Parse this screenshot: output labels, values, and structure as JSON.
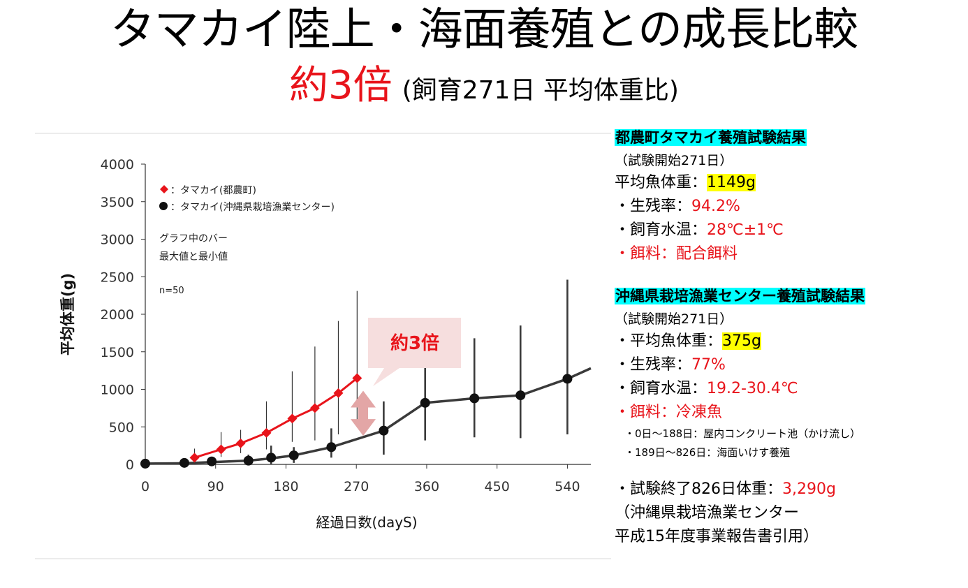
{
  "header": {
    "title": "タマカイ陸上・海面養殖との成長比較",
    "ratio": "約3倍",
    "ratio_note": "(飼育271日 平均体重比)"
  },
  "panel": {
    "tsuno": {
      "heading": "都農町タマカイ養殖試験結果",
      "period": "（試験開始271日）",
      "weight_label": "平均魚体重：",
      "weight_value": "1149g",
      "survival_label": "・生残率：",
      "survival_value": "94.2%",
      "temp_label": "・飼育水温：",
      "temp_value": "28℃±1℃",
      "feed_label": "・餌料：",
      "feed_value": "配合餌料"
    },
    "okinawa": {
      "heading": "沖縄県栽培漁業センター養殖試験結果",
      "period": "（試験開始271日）",
      "weight_label": "・平均魚体重：",
      "weight_value": "375g",
      "survival_label": "・生残率：",
      "survival_value": "77%",
      "temp_label": "・飼育水温：",
      "temp_value": "19.2-30.4℃",
      "feed_label": "・餌料：",
      "feed_value": "冷凍魚",
      "note1": "・0日～188日：屋内コンクリート池（かけ流し）",
      "note2": "・189日～826日：海面いけす養殖"
    },
    "final_label": "・試験終了826日体重：",
    "final_value": "3,290g",
    "source1": "（沖縄県栽培漁業センター",
    "source2": "平成15年度事業報告書引用）"
  },
  "colors": {
    "accent": "#e8141b",
    "series2": "#000000",
    "cyan": "#00ffff",
    "yellow": "#ffff00",
    "callout": "#f6dede",
    "arrow": "#e3a6a6"
  },
  "chart_data": {
    "type": "line",
    "title": "",
    "xlabel": "経過日数(dayS)",
    "ylabel": "平均体重(g)",
    "xlim": [
      0,
      570
    ],
    "ylim": [
      0,
      4000
    ],
    "xticks": [
      0,
      90,
      180,
      270,
      360,
      450,
      540
    ],
    "yticks": [
      0,
      500,
      1000,
      1500,
      2000,
      2500,
      3000,
      3500,
      4000
    ],
    "legend": [
      {
        "symbol": "◆",
        "label": "：タマカイ(都農町)"
      },
      {
        "symbol": "●",
        "label": "：タマカイ(沖縄県栽培漁業センター)"
      }
    ],
    "annotations": [
      "グラフ中のバー",
      "最大値と最小値",
      "n=50"
    ],
    "callout": "約3倍",
    "series": [
      {
        "name": "タマカイ(都農町)",
        "marker": "diamond",
        "color": "#e8141b",
        "x": [
          63,
          97,
          122,
          155,
          188,
          217,
          247,
          271
        ],
        "y": [
          90,
          200,
          280,
          420,
          610,
          750,
          950,
          1149
        ],
        "err_low": [
          30,
          100,
          150,
          200,
          300,
          320,
          400,
          500
        ],
        "err_high": [
          210,
          430,
          460,
          840,
          1240,
          1570,
          1910,
          2310
        ]
      },
      {
        "name": "タマカイ(沖縄県栽培漁業センター)",
        "marker": "circle",
        "color": "#000000",
        "x": [
          0,
          50,
          85,
          132,
          161,
          190,
          238,
          305,
          358,
          421,
          480,
          540
        ],
        "y": [
          10,
          20,
          40,
          50,
          90,
          120,
          230,
          450,
          820,
          880,
          920,
          1140
        ],
        "err_low": [
          0,
          0,
          0,
          0,
          0,
          20,
          90,
          130,
          320,
          360,
          350,
          400
        ],
        "err_high": [
          40,
          80,
          90,
          130,
          250,
          230,
          480,
          840,
          1290,
          1680,
          1850,
          2460
        ],
        "trend_x": [
          0,
          50,
          85,
          132,
          161,
          190,
          238,
          305,
          358,
          421,
          480,
          540,
          570
        ],
        "trend_y": [
          10,
          15,
          30,
          50,
          80,
          120,
          230,
          450,
          820,
          880,
          920,
          1140,
          1280
        ]
      }
    ]
  }
}
